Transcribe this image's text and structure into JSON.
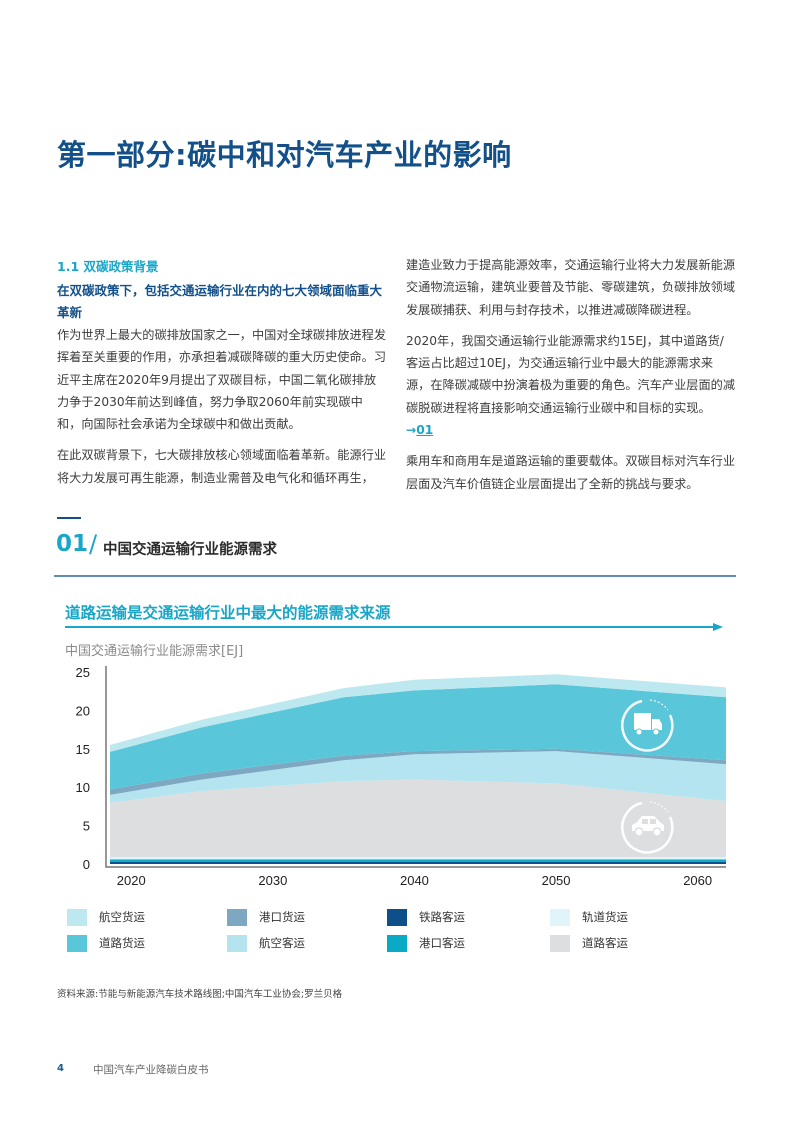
{
  "page": {
    "title": "第一部分:碳中和对汽车产业的影响",
    "page_number": "4",
    "document_title": "中国汽车产业降碳白皮书"
  },
  "section": {
    "number_title": "1.1 双碳政策背景",
    "subtitle": "在双碳政策下，包括交通运输行业在内的七大领域面临重大革新",
    "left_paragraphs": [
      "作为世界上最大的碳排放国家之一，中国对全球碳排放进程发挥着至关重要的作用，亦承担着减碳降碳的重大历史使命。习近平主席在2020年9月提出了双碳目标，中国二氧化碳排放力争于2030年前达到峰值，努力争取2060年前实现碳中和，向国际社会承诺为全球碳中和做出贡献。",
      "在此双碳背景下，七大碳排放核心领域面临着革新。能源行业将大力发展可再生能源，制造业需普及电气化和循环再生，"
    ],
    "right_paragraphs": [
      "建造业致力于提高能源效率，交通运输行业将大力发展新能源交通物流运输，建筑业要普及节能、零碳建筑，负碳排放领域发展碳捕获、利用与封存技术，以推进减碳降碳进程。",
      "2020年，我国交通运输行业能源需求约15EJ，其中道路货/客运占比超过10EJ，为交通运输行业中最大的能源需求来源，在降碳减碳中扮演着极为重要的角色。汽车产业层面的减碳脱碳进程将直接影响交通运输行业碳中和目标的实现。",
      "乘用车和商用车是道路运输的重要载体。双碳目标对汽车行业层面及汽车价值链企业层面提出了全新的挑战与要求。"
    ],
    "ref_arrow": "→",
    "ref_label": "01"
  },
  "figure": {
    "number": "01",
    "slash": "/",
    "title": "中国交通运输行业能源需求",
    "headline": "道路运输是交通运输行业中最大的能源需求来源",
    "unit_label": "中国交通运输行业能源需求[EJ]",
    "source": "资料来源:节能与新能源汽车技术路线图;中国汽车工业协会;罗兰贝格",
    "icons": [
      "truck-icon",
      "car-icon"
    ]
  },
  "legend": [
    {
      "label": "航空货运",
      "color": "#bde8f0"
    },
    {
      "label": "港口货运",
      "color": "#7ea7c1"
    },
    {
      "label": "铁路客运",
      "color": "#0d5089"
    },
    {
      "label": "轨道货运",
      "color": "#e0f4f9"
    },
    {
      "label": "道路货运",
      "color": "#59c6da"
    },
    {
      "label": "航空客运",
      "color": "#b3e4ef"
    },
    {
      "label": "港口客运",
      "color": "#0aa9c6"
    },
    {
      "label": "道路客运",
      "color": "#dddee0"
    }
  ],
  "chart_data": {
    "type": "area",
    "title": "道路运输是交通运输行业中最大的能源需求来源",
    "ylabel": "中国交通运输行业能源需求[EJ]",
    "xlabel": "",
    "x": [
      2018.5,
      2025,
      2035,
      2040,
      2050,
      2062
    ],
    "x_ticks": [
      "2020",
      "2030",
      "2040",
      "2050",
      "2060"
    ],
    "y_ticks": [
      "0",
      "5",
      "10",
      "15",
      "20",
      "25"
    ],
    "ylim": [
      0,
      25
    ],
    "stacked": true,
    "grid": false,
    "legend_position": "bottom",
    "series": [
      {
        "name": "铁路客运",
        "values": [
          0.3,
          0.3,
          0.3,
          0.3,
          0.3,
          0.3
        ]
      },
      {
        "name": "港口客运",
        "values": [
          0.3,
          0.3,
          0.3,
          0.3,
          0.3,
          0.3
        ]
      },
      {
        "name": "轨道货运",
        "values": [
          0.3,
          0.3,
          0.3,
          0.3,
          0.3,
          0.3
        ]
      },
      {
        "name": "道路客运",
        "values": [
          7.1,
          8.6,
          9.9,
          10.1,
          9.6,
          7.3
        ]
      },
      {
        "name": "航空客运",
        "values": [
          1.0,
          1.5,
          2.7,
          3.3,
          4.2,
          4.8
        ]
      },
      {
        "name": "港口货运",
        "values": [
          0.7,
          0.8,
          0.6,
          0.4,
          0.3,
          0.5
        ]
      },
      {
        "name": "道路货运",
        "values": [
          4.9,
          6.0,
          7.6,
          7.9,
          8.4,
          8.2
        ]
      },
      {
        "name": "航空货运",
        "values": [
          0.9,
          1.0,
          1.2,
          1.4,
          1.3,
          1.3
        ]
      }
    ]
  }
}
